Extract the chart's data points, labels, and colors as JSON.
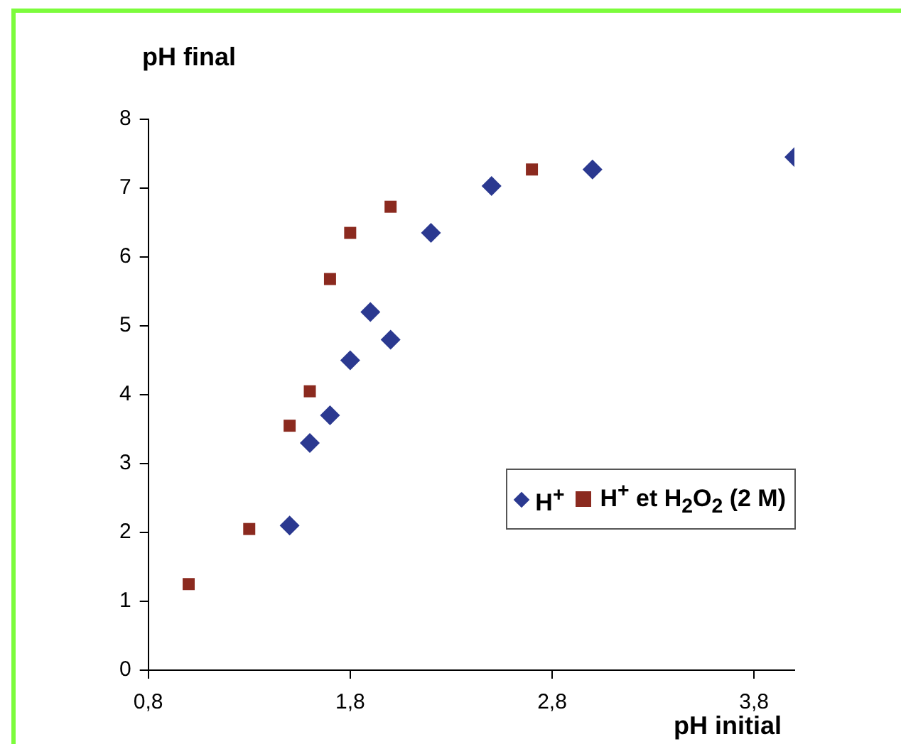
{
  "chart_data": {
    "type": "scatter",
    "xlabel": "pH initial",
    "ylabel": "pH final",
    "xlim": [
      0.8,
      4.0
    ],
    "xticks": [
      {
        "value": 0.8,
        "label": "0,8"
      },
      {
        "value": 1.8,
        "label": "1,8"
      },
      {
        "value": 2.8,
        "label": "2,8"
      },
      {
        "value": 3.8,
        "label": "3,8"
      }
    ],
    "ylim": [
      0,
      8
    ],
    "yticks": [
      0,
      1,
      2,
      3,
      4,
      5,
      6,
      7,
      8
    ],
    "grid": false,
    "legend": "right",
    "series": [
      {
        "name": "H$^{+}$",
        "color": "#2b3990",
        "marker": "diamond",
        "x": [
          1.5,
          1.6,
          1.7,
          1.8,
          1.9,
          2.0,
          2.2,
          2.5,
          3.0,
          4.0
        ],
        "values": [
          2.1,
          3.3,
          3.7,
          4.5,
          5.2,
          4.8,
          6.35,
          7.03,
          7.27,
          7.45
        ]
      },
      {
        "name": "H$^{+}$ et H$_{2}$O$_{2}$ (2 M)",
        "color": "#8b2a1f",
        "marker": "square",
        "x": [
          1.0,
          1.3,
          1.5,
          1.6,
          1.7,
          1.8,
          2.0,
          2.7
        ],
        "values": [
          1.25,
          2.05,
          3.55,
          4.05,
          5.68,
          6.35,
          6.73,
          7.27
        ]
      }
    ]
  }
}
